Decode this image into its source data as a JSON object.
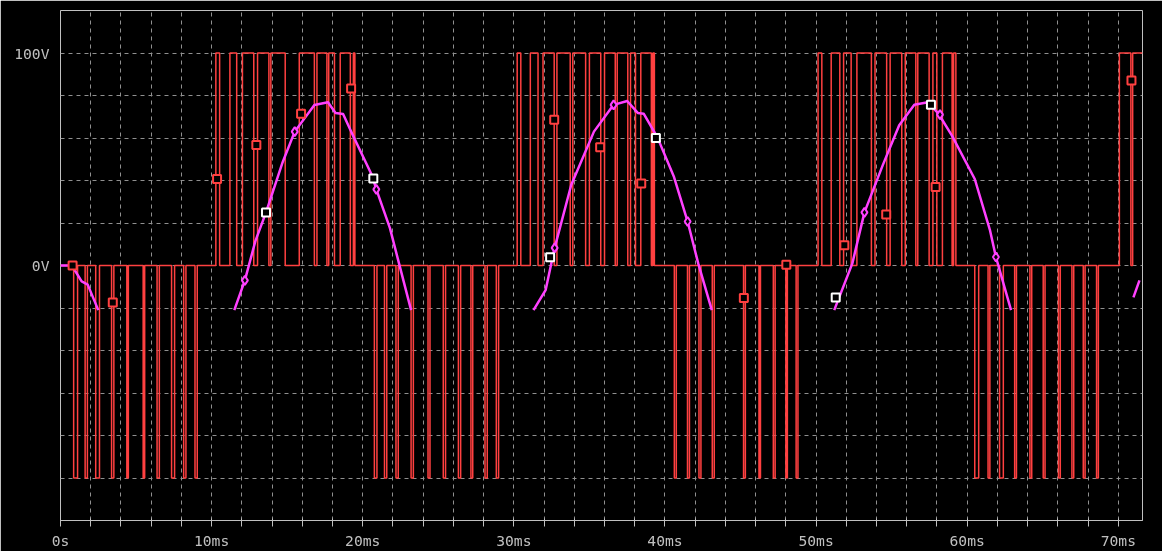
{
  "chart_data": {
    "type": "line",
    "xlim": [
      0,
      71.6
    ],
    "ylim": [
      -120,
      120
    ],
    "xticks": [
      {
        "value": 0,
        "label": "0s"
      },
      {
        "value": 2,
        "label": null
      },
      {
        "value": 4,
        "label": null
      },
      {
        "value": 6,
        "label": null
      },
      {
        "value": 8,
        "label": null
      },
      {
        "value": 10,
        "label": "10ms"
      },
      {
        "value": 12,
        "label": null
      },
      {
        "value": 14,
        "label": null
      },
      {
        "value": 16,
        "label": null
      },
      {
        "value": 18,
        "label": null
      },
      {
        "value": 20,
        "label": "20ms"
      },
      {
        "value": 22,
        "label": null
      },
      {
        "value": 24,
        "label": null
      },
      {
        "value": 26,
        "label": null
      },
      {
        "value": 28,
        "label": null
      },
      {
        "value": 30,
        "label": "30ms"
      },
      {
        "value": 32,
        "label": null
      },
      {
        "value": 34,
        "label": null
      },
      {
        "value": 36,
        "label": null
      },
      {
        "value": 38,
        "label": null
      },
      {
        "value": 40,
        "label": "40ms"
      },
      {
        "value": 42,
        "label": null
      },
      {
        "value": 44,
        "label": null
      },
      {
        "value": 46,
        "label": null
      },
      {
        "value": 48,
        "label": null
      },
      {
        "value": 50,
        "label": "50ms"
      },
      {
        "value": 52,
        "label": null
      },
      {
        "value": 54,
        "label": null
      },
      {
        "value": 56,
        "label": null
      },
      {
        "value": 58,
        "label": null
      },
      {
        "value": 60,
        "label": "60ms"
      },
      {
        "value": 62,
        "label": null
      },
      {
        "value": 64,
        "label": null
      },
      {
        "value": 66,
        "label": null
      },
      {
        "value": 68,
        "label": null
      },
      {
        "value": 70,
        "label": "70ms"
      }
    ],
    "yticks": [
      {
        "value": -100,
        "label": null
      },
      {
        "value": -80,
        "label": null
      },
      {
        "value": -60,
        "label": null
      },
      {
        "value": -40,
        "label": null
      },
      {
        "value": -20,
        "label": null
      },
      {
        "value": 0,
        "label": "0V"
      },
      {
        "value": 20,
        "label": null
      },
      {
        "value": 40,
        "label": null
      },
      {
        "value": 60,
        "label": null
      },
      {
        "value": 80,
        "label": null
      },
      {
        "value": 100,
        "label": "100V"
      }
    ],
    "grid": true,
    "series": [
      {
        "type": "step",
        "color": "#ff4040",
        "x": [
          0,
          0.87,
          1.13,
          1.63,
          1.78,
          2.33,
          2.58,
          3.38,
          3.53,
          4.39,
          4.49,
          5.47,
          5.57,
          6.39,
          6.54,
          7.35,
          7.55,
          8.15,
          8.3,
          8.9,
          9.05,
          10.28,
          10.53,
          11.21,
          11.66,
          12.04,
          12.79,
          13.04,
          13.79,
          13.92,
          14.87,
          15.8,
          16.8,
          16.97,
          17.63,
          17.75,
          18.13,
          18.51,
          19.18,
          19.38,
          19.48,
          20.77,
          20.94,
          21.44,
          21.59,
          22.2,
          22.35,
          23.2,
          23.35,
          24.32,
          24.45,
          25.33,
          25.48,
          26.33,
          26.48,
          27.16,
          27.28,
          28.09,
          28.24,
          28.84,
          28.99,
          30.22,
          30.46,
          31.09,
          31.6,
          31.93,
          32.67,
          32.85,
          33.73,
          33.9,
          34.75,
          35.0,
          35.75,
          36.0,
          36.71,
          36.84,
          37.54,
          37.72,
          38.05,
          38.4,
          39.1,
          39.2,
          39.3,
          40.62,
          40.75,
          41.49,
          41.62,
          42.25,
          42.38,
          43.13,
          43.26,
          45.2,
          45.32,
          46.22,
          46.32,
          47.17,
          47.29,
          48.0,
          48.1,
          48.68,
          48.8,
          50.13,
          50.38,
          51.0,
          51.57,
          51.82,
          52.32,
          52.7,
          53.66,
          53.9,
          54.67,
          54.9,
          55.67,
          55.9,
          56.6,
          56.73,
          57.48,
          57.73,
          57.99,
          58.36,
          59.0,
          59.1,
          59.25,
          60.5,
          60.76,
          61.38,
          61.5,
          62.14,
          62.39,
          63.14,
          63.26,
          64.15,
          64.27,
          65.03,
          65.15,
          66.04,
          66.16,
          66.93,
          67.05,
          67.68,
          67.8,
          68.56,
          68.68,
          70.07,
          70.83,
          70.95,
          71.6
        ],
        "values": [
          0,
          -100,
          0,
          -100,
          0,
          -100,
          0,
          -100,
          0,
          -100,
          0,
          -100,
          0,
          -100,
          0,
          -100,
          0,
          -100,
          0,
          -100,
          0,
          100,
          0,
          100,
          0,
          100,
          0,
          100,
          0,
          100,
          0,
          100,
          0,
          100,
          0,
          100,
          0,
          100,
          0,
          100,
          0,
          -100,
          0,
          -100,
          0,
          -100,
          0,
          -100,
          0,
          -100,
          0,
          -100,
          0,
          -100,
          0,
          -100,
          0,
          -100,
          0,
          -100,
          0,
          100,
          0,
          100,
          0,
          100,
          0,
          100,
          0,
          100,
          0,
          100,
          0,
          100,
          0,
          100,
          0,
          100,
          0,
          100,
          0,
          100,
          0,
          -100,
          0,
          -100,
          0,
          -100,
          0,
          -100,
          0,
          -100,
          0,
          -100,
          0,
          -100,
          0,
          -100,
          0,
          -100,
          0,
          100,
          0,
          100,
          0,
          100,
          0,
          100,
          0,
          100,
          0,
          100,
          0,
          100,
          0,
          100,
          0,
          100,
          0,
          100,
          0,
          100,
          0,
          -100,
          0,
          -100,
          0,
          -100,
          0,
          -100,
          0,
          -100,
          0,
          -100,
          0,
          -100,
          0,
          -100,
          0,
          -100,
          0,
          -100,
          0,
          100,
          0,
          100,
          100
        ]
      },
      {
        "color": "#ff40ff",
        "x": [
          0,
          0.75,
          1.4,
          1.8,
          2.5,
          null,
          11.5,
          12.2,
          12.9,
          13.6,
          14.7,
          15.5,
          16.8,
          17.7,
          18.2,
          18.7,
          19.3,
          20.6,
          20.9,
          21.8,
          22.4,
          23.2,
          null,
          31.3,
          32.1,
          32.7,
          33.8,
          35.3,
          36.6,
          37.5,
          38.2,
          38.6,
          39.5,
          40.6,
          41.5,
          42.2,
          43.1,
          null,
          51.2,
          52.4,
          53.2,
          54.4,
          55.5,
          56.5,
          57.4,
          58.1,
          59.0,
          60.5,
          61.5,
          61.9,
          62.9,
          null,
          71.0,
          71.4
        ],
        "values": [
          0,
          0,
          -7.5,
          -9,
          -21,
          null,
          -21,
          -7,
          11.6,
          25,
          48.6,
          63,
          75.5,
          76.8,
          71.8,
          71.3,
          62,
          42.6,
          35.8,
          17.6,
          1,
          -21,
          null,
          -21,
          -11.6,
          8.3,
          38,
          63,
          75.6,
          77.4,
          71.8,
          71.4,
          60.3,
          41.6,
          20.7,
          1,
          -21,
          null,
          -21,
          1,
          25,
          47,
          66,
          75.6,
          76.8,
          71.4,
          61,
          40.7,
          16.8,
          4,
          -21,
          null,
          -15,
          -7
        ]
      },
      {
        "type": "scatter",
        "marker": "diamond",
        "color": "#ff40ff",
        "x": [
          12.2,
          15.5,
          20.9,
          32.7,
          36.6,
          41.5,
          53.2,
          58.2,
          61.9
        ],
        "values": [
          -7,
          63,
          35.8,
          8.3,
          75.6,
          20.7,
          25,
          71,
          4
        ]
      },
      {
        "type": "scatter",
        "marker": "square",
        "color": "#ff4040",
        "x": [
          0.8,
          3.46,
          10.36,
          12.96,
          15.92,
          19.23,
          32.67,
          35.71,
          38.43,
          45.22,
          48.03,
          51.87,
          54.64,
          57.91,
          70.87
        ],
        "values": [
          0,
          -17.4,
          40.7,
          56.7,
          71.4,
          83.3,
          68.6,
          55.6,
          38.6,
          -15.3,
          0.4,
          9.5,
          24,
          36.9,
          87.1
        ]
      },
      {
        "type": "scatter",
        "marker": "square",
        "color": "#ffffff",
        "x": [
          13.6,
          20.7,
          32.4,
          39.4,
          51.3,
          57.6
        ],
        "values": [
          25,
          41,
          3.9,
          60,
          -15,
          75.6
        ]
      }
    ]
  }
}
